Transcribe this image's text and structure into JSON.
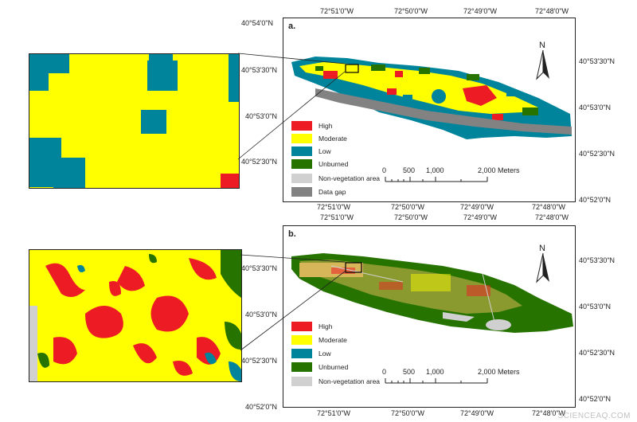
{
  "colors": {
    "high": "#ed1c24",
    "moderate": "#ffff00",
    "low": "#00849c",
    "unburned": "#267300",
    "non_vegetation": "#d0d0d0",
    "data_gap": "#828282",
    "frame": "#222222"
  },
  "panel_a": {
    "letter": "a.",
    "top_lon_labels": [
      "72°51'0\"W",
      "72°50'0\"W",
      "72°49'0\"W",
      "72°48'0\"W"
    ],
    "bottom_lon_labels": [
      "72°51'0\"W",
      "72°50'0\"W",
      "72°49'0\"W",
      "72°48'0\"W"
    ],
    "left_lat_labels": [
      "40°54'0\"N",
      "40°53'30\"N",
      "40°53'0\"N",
      "40°52'30\"N"
    ],
    "right_lat_labels": [
      "40°53'30\"N",
      "40°53'0\"N",
      "40°52'30\"N",
      "40°52'0\"N"
    ],
    "legend": [
      {
        "label": "High",
        "key": "high"
      },
      {
        "label": "Moderate",
        "key": "moderate"
      },
      {
        "label": "Low",
        "key": "low"
      },
      {
        "label": "Unburned",
        "key": "unburned"
      },
      {
        "label": "Non-vegetation area",
        "key": "non_vegetation"
      },
      {
        "label": "Data gap",
        "key": "data_gap"
      }
    ],
    "scale_ticks": [
      "0",
      "500",
      "1,000",
      "2,000 Meters"
    ],
    "north": "N"
  },
  "panel_b": {
    "letter": "b.",
    "top_lon_labels": [
      "72°51'0\"W",
      "72°50'0\"W",
      "72°49'0\"W",
      "72°48'0\"W"
    ],
    "bottom_lon_labels": [
      "72°51'0\"W",
      "72°50'0\"W",
      "72°49'0\"W",
      "72°48'0\"W"
    ],
    "left_lat_labels": [
      "40°53'30\"N",
      "40°53'0\"N",
      "40°52'30\"N",
      "40°52'0\"N"
    ],
    "right_lat_labels": [
      "40°53'30\"N",
      "40°53'0\"N",
      "40°52'30\"N",
      "40°52'0\"N"
    ],
    "legend": [
      {
        "label": "High",
        "key": "high"
      },
      {
        "label": "Moderate",
        "key": "moderate"
      },
      {
        "label": "Low",
        "key": "low"
      },
      {
        "label": "Unburned",
        "key": "unburned"
      },
      {
        "label": "Non-vegetation area",
        "key": "non_vegetation"
      }
    ],
    "scale_ticks": [
      "0",
      "500",
      "1,000",
      "2,000 Meters"
    ],
    "north": "N"
  },
  "watermark": "SCIENCEAQ.COM"
}
